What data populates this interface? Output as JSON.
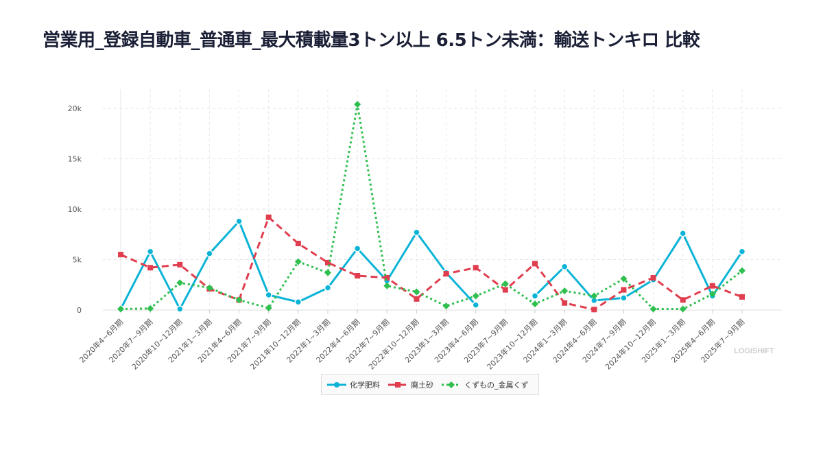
{
  "title": "営業用_登録自動車_普通車_最大積載量3トン以上 6.5トン未満：輸送トンキロ 比較",
  "watermark": "LOGISHIFT",
  "chart_data": {
    "type": "line",
    "title": "営業用_登録自動車_普通車_最大積載量3トン以上 6.5トン未満：輸送トンキロ 比較",
    "xlabel": "",
    "ylabel": "",
    "ylim": [
      0,
      21500
    ],
    "yticks": [
      0,
      5000,
      10000,
      15000,
      20000
    ],
    "ytick_labels": [
      "0",
      "5k",
      "10k",
      "15k",
      "20k"
    ],
    "grid": true,
    "legend_position": "bottom",
    "categories": [
      "2020年4~6月期",
      "2020年7~9月期",
      "2020年10~12月期",
      "2021年1~3月期",
      "2021年4~6月期",
      "2021年7~9月期",
      "2021年10~12月期",
      "2022年1~3月期",
      "2022年4~6月期",
      "2022年7~9月期",
      "2022年10~12月期",
      "2023年1~3月期",
      "2023年4~6月期",
      "2023年7~9月期",
      "2023年10~12月期",
      "2024年1~3月期",
      "2024年4~6月期",
      "2024年7~9月期",
      "2024年10~12月期",
      "2025年1~3月期",
      "2025年4~6月期",
      "2025年7~9月期"
    ],
    "series": [
      {
        "name": "化学肥料",
        "color": "#0bb4d6",
        "dash": "solid",
        "marker": "circle",
        "values": [
          100,
          5800,
          100,
          5600,
          8800,
          1500,
          800,
          2200,
          6100,
          2900,
          7700,
          3700,
          500,
          null,
          1400,
          4300,
          950,
          1200,
          3000,
          7600,
          1400,
          5800
        ]
      },
      {
        "name": "廃土砂",
        "color": "#e03e4e",
        "dash": "dashed",
        "marker": "square",
        "values": [
          5500,
          4200,
          4500,
          2100,
          1000,
          9200,
          6600,
          4700,
          3400,
          3200,
          1100,
          3600,
          4200,
          2000,
          4600,
          700,
          50,
          2000,
          3200,
          1000,
          2400,
          1300
        ]
      },
      {
        "name": "くずもの_金属くず",
        "color": "#2fbf4f",
        "dash": "dotted",
        "marker": "diamond",
        "values": [
          100,
          150,
          2700,
          2200,
          1000,
          200,
          4800,
          3700,
          20400,
          2400,
          1800,
          400,
          1400,
          2600,
          600,
          1900,
          1400,
          3100,
          100,
          100,
          1600,
          3900
        ]
      }
    ]
  }
}
